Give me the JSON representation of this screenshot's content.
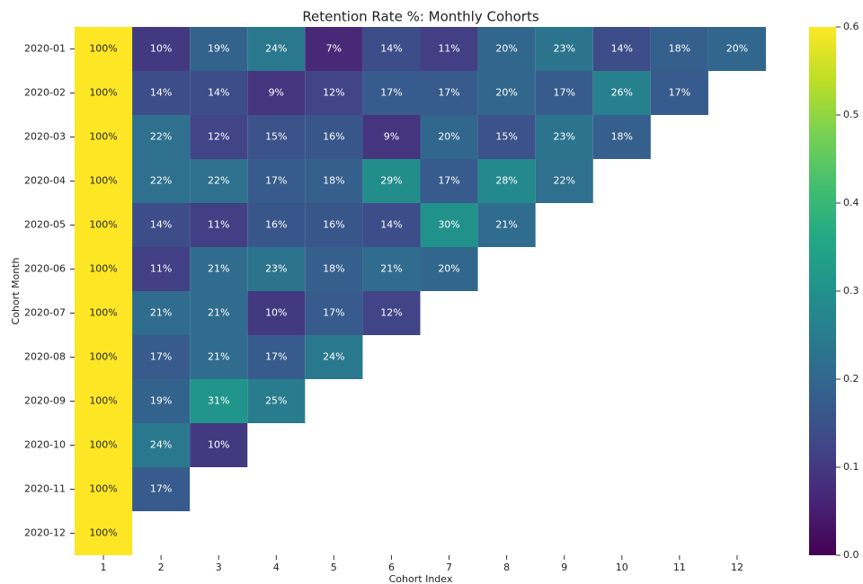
{
  "chart_data": {
    "type": "heatmap",
    "title": "Retention Rate %: Monthly Cohorts",
    "x_label": "Cohort Index",
    "y_label": "Cohort Month",
    "categories": [
      "1",
      "2",
      "3",
      "4",
      "5",
      "6",
      "7",
      "8",
      "9",
      "10",
      "11",
      "12"
    ],
    "rows": [
      "2020-01",
      "2020-02",
      "2020-03",
      "2020-04",
      "2020-05",
      "2020-06",
      "2020-07",
      "2020-08",
      "2020-09",
      "2020-10",
      "2020-11",
      "2020-12"
    ],
    "colormap": "viridis",
    "zlim": [
      0,
      0.6
    ],
    "zticks": [
      {
        "value": 0,
        "label": "0.0"
      },
      0.1,
      0.2,
      0.3,
      0.4,
      0.5,
      0.6
    ],
    "values": [
      [
        1.0,
        0.1,
        0.19,
        0.24,
        0.07,
        0.14,
        0.11,
        0.2,
        0.23,
        0.14,
        0.18,
        0.2
      ],
      [
        1.0,
        0.14,
        0.14,
        0.09,
        0.12,
        0.17,
        0.17,
        0.2,
        0.17,
        0.26,
        0.17,
        null
      ],
      [
        1.0,
        0.22,
        0.12,
        0.15,
        0.16,
        0.09,
        0.2,
        0.15,
        0.23,
        0.18,
        null,
        null
      ],
      [
        1.0,
        0.22,
        0.22,
        0.17,
        0.18,
        0.29,
        0.17,
        0.28,
        0.22,
        null,
        null,
        null
      ],
      [
        1.0,
        0.14,
        0.11,
        0.16,
        0.16,
        0.14,
        0.3,
        0.21,
        null,
        null,
        null,
        null
      ],
      [
        1.0,
        0.11,
        0.21,
        0.23,
        0.18,
        0.21,
        0.2,
        null,
        null,
        null,
        null,
        null
      ],
      [
        1.0,
        0.21,
        0.21,
        0.1,
        0.17,
        0.12,
        null,
        null,
        null,
        null,
        null,
        null
      ],
      [
        1.0,
        0.17,
        0.21,
        0.17,
        0.24,
        null,
        null,
        null,
        null,
        null,
        null,
        null
      ],
      [
        1.0,
        0.19,
        0.31,
        0.25,
        null,
        null,
        null,
        null,
        null,
        null,
        null,
        null
      ],
      [
        1.0,
        0.24,
        0.1,
        null,
        null,
        null,
        null,
        null,
        null,
        null,
        null,
        null
      ],
      [
        1.0,
        0.17,
        null,
        null,
        null,
        null,
        null,
        null,
        null,
        null,
        null,
        null
      ],
      [
        1.0,
        null,
        null,
        null,
        null,
        null,
        null,
        null,
        null,
        null,
        null,
        null
      ]
    ],
    "value_labels": [
      [
        "100%",
        "10%",
        "19%",
        "24%",
        "7%",
        "14%",
        "11%",
        "20%",
        "23%",
        "14%",
        "18%",
        "20%"
      ],
      [
        "100%",
        "14%",
        "14%",
        "9%",
        "12%",
        "17%",
        "17%",
        "20%",
        "17%",
        "26%",
        "17%",
        null
      ],
      [
        "100%",
        "22%",
        "12%",
        "15%",
        "16%",
        "9%",
        "20%",
        "15%",
        "23%",
        "18%",
        null,
        null
      ],
      [
        "100%",
        "22%",
        "22%",
        "17%",
        "18%",
        "29%",
        "17%",
        "28%",
        "22%",
        null,
        null,
        null
      ],
      [
        "100%",
        "14%",
        "11%",
        "16%",
        "16%",
        "14%",
        "30%",
        "21%",
        null,
        null,
        null,
        null
      ],
      [
        "100%",
        "11%",
        "21%",
        "23%",
        "18%",
        "21%",
        "20%",
        null,
        null,
        null,
        null,
        null
      ],
      [
        "100%",
        "21%",
        "21%",
        "10%",
        "17%",
        "12%",
        null,
        null,
        null,
        null,
        null,
        null
      ],
      [
        "100%",
        "17%",
        "21%",
        "17%",
        "24%",
        null,
        null,
        null,
        null,
        null,
        null,
        null
      ],
      [
        "100%",
        "19%",
        "31%",
        "25%",
        null,
        null,
        null,
        null,
        null,
        null,
        null,
        null
      ],
      [
        "100%",
        "24%",
        "10%",
        null,
        null,
        null,
        null,
        null,
        null,
        null,
        null,
        null
      ],
      [
        "100%",
        "17%",
        null,
        null,
        null,
        null,
        null,
        null,
        null,
        null,
        null,
        null
      ],
      [
        "100%",
        null,
        null,
        null,
        null,
        null,
        null,
        null,
        null,
        null,
        null,
        null
      ]
    ]
  }
}
